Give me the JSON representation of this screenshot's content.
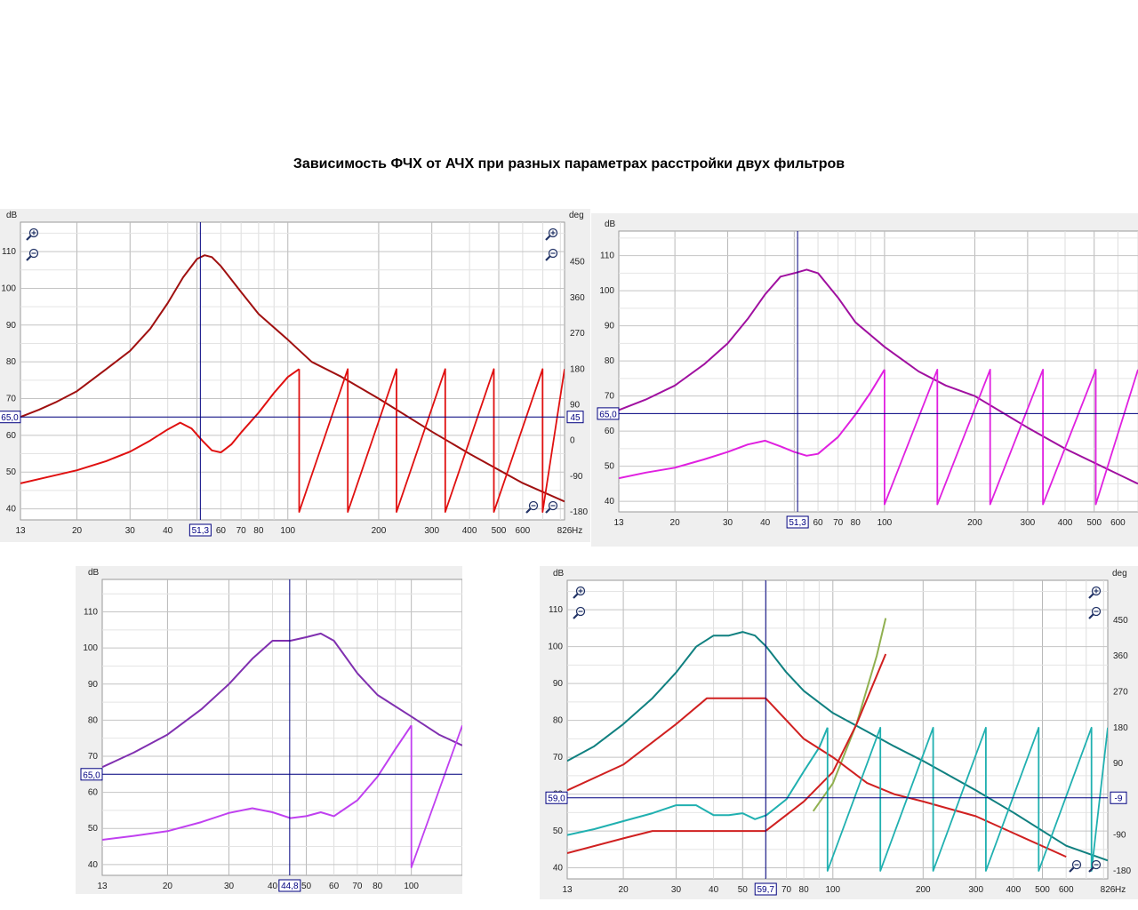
{
  "title": "Зависимость ФЧХ от АЧХ при разных параметрах расстройки двух фильтров",
  "chart_data": [
    {
      "type": "line",
      "id": "c1",
      "y_unit": "dB",
      "y2_unit": "deg",
      "x_unit": "Hz",
      "xlim": [
        13,
        826
      ],
      "ylim": [
        37,
        118
      ],
      "y2lim": [
        -200,
        550
      ],
      "x_ticks": [
        "13",
        "20",
        "30",
        "40",
        "60",
        "70",
        "80",
        "100",
        "200",
        "300",
        "400",
        "500",
        "600",
        "826"
      ],
      "y_ticks": [
        "40",
        "50",
        "60",
        "70",
        "80",
        "90",
        "100",
        "110"
      ],
      "y2_ticks": [
        "-180",
        "-90",
        "0",
        "90",
        "180",
        "270",
        "360",
        "450"
      ],
      "cursor_x": "51,3",
      "cursor_y": "65,0",
      "cursor_y2": "45",
      "cursor_value_x": 51.3,
      "cursor_value_y": 65.0,
      "series": [
        {
          "role": "magnitude",
          "color": "#a01010",
          "x": [
            13,
            15,
            17,
            20,
            25,
            30,
            35,
            40,
            45,
            50,
            53,
            56,
            60,
            70,
            80,
            100,
            120,
            150,
            200,
            300,
            400,
            600,
            826
          ],
          "y": [
            65,
            67,
            69,
            72,
            78,
            83,
            89,
            96,
            103,
            108,
            109,
            108.5,
            106,
            99,
            93,
            86,
            80,
            76,
            70,
            61,
            55,
            47,
            42
          ]
        },
        {
          "role": "phase",
          "color": "#e01010",
          "x": [
            13,
            16,
            20,
            25,
            30,
            35,
            40,
            44,
            48,
            52,
            56,
            60,
            65,
            70,
            80,
            90,
            100,
            109
          ],
          "y": [
            -108,
            -92,
            -75,
            -52,
            -28,
            0,
            28,
            45,
            30,
            0,
            -25,
            -30,
            -10,
            20,
            70,
            120,
            160,
            180
          ]
        }
      ],
      "wraps": {
        "color": "#e01010",
        "start": 109,
        "end": 826,
        "ratio": 1.45,
        "min": -180,
        "max": 180
      }
    },
    {
      "type": "line",
      "id": "c2",
      "y_unit": "dB",
      "x_unit": "",
      "xlim": [
        13,
        700
      ],
      "ylim": [
        37,
        117
      ],
      "y2lim": [
        -200,
        550
      ],
      "x_ticks": [
        "13",
        "20",
        "30",
        "40",
        "60",
        "70",
        "80",
        "100",
        "200",
        "300",
        "400",
        "500",
        "600"
      ],
      "y_ticks": [
        "40",
        "50",
        "60",
        "70",
        "80",
        "90",
        "100",
        "110"
      ],
      "cursor_x": "51,3",
      "cursor_y": "65,0",
      "cursor_value_x": 51.3,
      "cursor_value_y": 65.0,
      "series": [
        {
          "role": "magnitude",
          "color": "#a010a0",
          "x": [
            13,
            16,
            20,
            25,
            30,
            35,
            40,
            45,
            50,
            55,
            60,
            70,
            80,
            100,
            130,
            160,
            200,
            300,
            400,
            700
          ],
          "y": [
            66,
            69,
            73,
            79,
            85,
            92,
            99,
            104,
            105,
            106,
            105,
            98,
            91,
            84,
            77,
            73,
            70,
            61,
            55,
            45
          ]
        },
        {
          "role": "phase",
          "color": "#e020e0",
          "x": [
            13,
            16,
            20,
            25,
            30,
            35,
            40,
            45,
            50,
            55,
            60,
            70,
            80,
            90,
            100
          ],
          "y": [
            -110,
            -95,
            -82,
            -60,
            -40,
            -20,
            -10,
            -25,
            -40,
            -50,
            -45,
            0,
            60,
            120,
            180
          ]
        }
      ],
      "wraps": {
        "color": "#e020e0",
        "start": 100,
        "end": 700,
        "ratio": 1.5,
        "min": -180,
        "max": 180
      }
    },
    {
      "type": "line",
      "id": "c3",
      "y_unit": "dB",
      "x_unit": "",
      "xlim": [
        13,
        140
      ],
      "ylim": [
        37,
        119
      ],
      "y2lim": [
        -200,
        550
      ],
      "x_ticks": [
        "13",
        "20",
        "30",
        "40",
        "50",
        "60",
        "70",
        "80",
        "100"
      ],
      "y_ticks": [
        "40",
        "50",
        "60",
        "70",
        "80",
        "90",
        "100",
        "110"
      ],
      "cursor_x": "44,8",
      "cursor_y": "65,0",
      "cursor_value_x": 44.8,
      "cursor_value_y": 65.0,
      "series": [
        {
          "role": "magnitude",
          "color": "#8030b0",
          "x": [
            13,
            16,
            20,
            25,
            30,
            35,
            40,
            45,
            50,
            55,
            60,
            70,
            80,
            100,
            120,
            140
          ],
          "y": [
            67,
            71,
            76,
            83,
            90,
            97,
            102,
            102,
            103,
            104,
            102,
            93,
            87,
            81,
            76,
            73
          ]
        },
        {
          "role": "phase",
          "color": "#c040f0",
          "x": [
            13,
            16,
            20,
            25,
            30,
            35,
            40,
            45,
            50,
            55,
            60,
            70,
            80,
            90,
            100
          ],
          "y": [
            -110,
            -100,
            -88,
            -65,
            -42,
            -30,
            -40,
            -55,
            -50,
            -40,
            -50,
            -10,
            50,
            120,
            180
          ]
        }
      ],
      "wraps": {
        "color": "#c040f0",
        "start": 100,
        "end": 140,
        "ratio": 1.5,
        "min": -180,
        "max": 180
      }
    },
    {
      "type": "line",
      "id": "c4",
      "y_unit": "dB",
      "y2_unit": "deg",
      "x_unit": "Hz",
      "xlim": [
        13,
        826
      ],
      "ylim": [
        37,
        118
      ],
      "y2lim": [
        -200,
        550
      ],
      "x_ticks": [
        "13",
        "20",
        "30",
        "40",
        "50",
        "70",
        "80",
        "100",
        "200",
        "300",
        "400",
        "500",
        "600",
        "826"
      ],
      "y_ticks": [
        "40",
        "50",
        "60",
        "70",
        "80",
        "90",
        "100",
        "110"
      ],
      "y2_ticks": [
        "-180",
        "-90",
        "0",
        "90",
        "180",
        "270",
        "360",
        "450"
      ],
      "cursor_x": "59,7",
      "cursor_y": "59,0",
      "cursor_y2": "-9",
      "cursor_value_x": 59.7,
      "cursor_value_y": 59.0,
      "series": [
        {
          "role": "magnitude",
          "color": "#108080",
          "x": [
            13,
            16,
            20,
            25,
            30,
            35,
            40,
            45,
            50,
            55,
            60,
            70,
            80,
            100,
            130,
            160,
            200,
            300,
            400,
            600,
            826
          ],
          "y": [
            69,
            73,
            79,
            86,
            93,
            100,
            103,
            103,
            104,
            103,
            100,
            93,
            88,
            82,
            77,
            73,
            69,
            61,
            55,
            46,
            42
          ]
        },
        {
          "role": "phase",
          "color": "#20b0b0",
          "x": [
            13,
            16,
            20,
            25,
            30,
            35,
            40,
            45,
            50,
            55,
            60,
            70,
            80,
            90,
            96
          ],
          "y": [
            -90,
            -75,
            -55,
            -35,
            -15,
            -15,
            -40,
            -40,
            -35,
            -50,
            -40,
            0,
            70,
            130,
            180
          ]
        },
        {
          "role": "group-delay",
          "color": "#90b050",
          "x": [
            86,
            100,
            120,
            140,
            150
          ],
          "y": [
            -30,
            40,
            190,
            360,
            455
          ]
        },
        {
          "role": "target-upper",
          "color": "#d02020",
          "x": [
            13,
            20,
            30,
            38,
            45,
            50,
            59.7,
            80,
            100,
            130,
            160,
            200,
            300,
            600
          ],
          "y": [
            61,
            68,
            79,
            86,
            86,
            86,
            86,
            75,
            70,
            63,
            60,
            58,
            54,
            43
          ]
        },
        {
          "role": "target-lower",
          "color": "#d02020",
          "x": [
            13,
            20,
            25,
            30,
            40,
            50,
            59.7,
            80,
            100,
            120,
            150
          ],
          "y": [
            44,
            48,
            50,
            50,
            50,
            50,
            50,
            58,
            66,
            79,
            98
          ]
        }
      ],
      "wraps": {
        "color": "#20b0b0",
        "start": 96,
        "end": 826,
        "ratio": 1.5,
        "min": -180,
        "max": 180
      }
    }
  ]
}
